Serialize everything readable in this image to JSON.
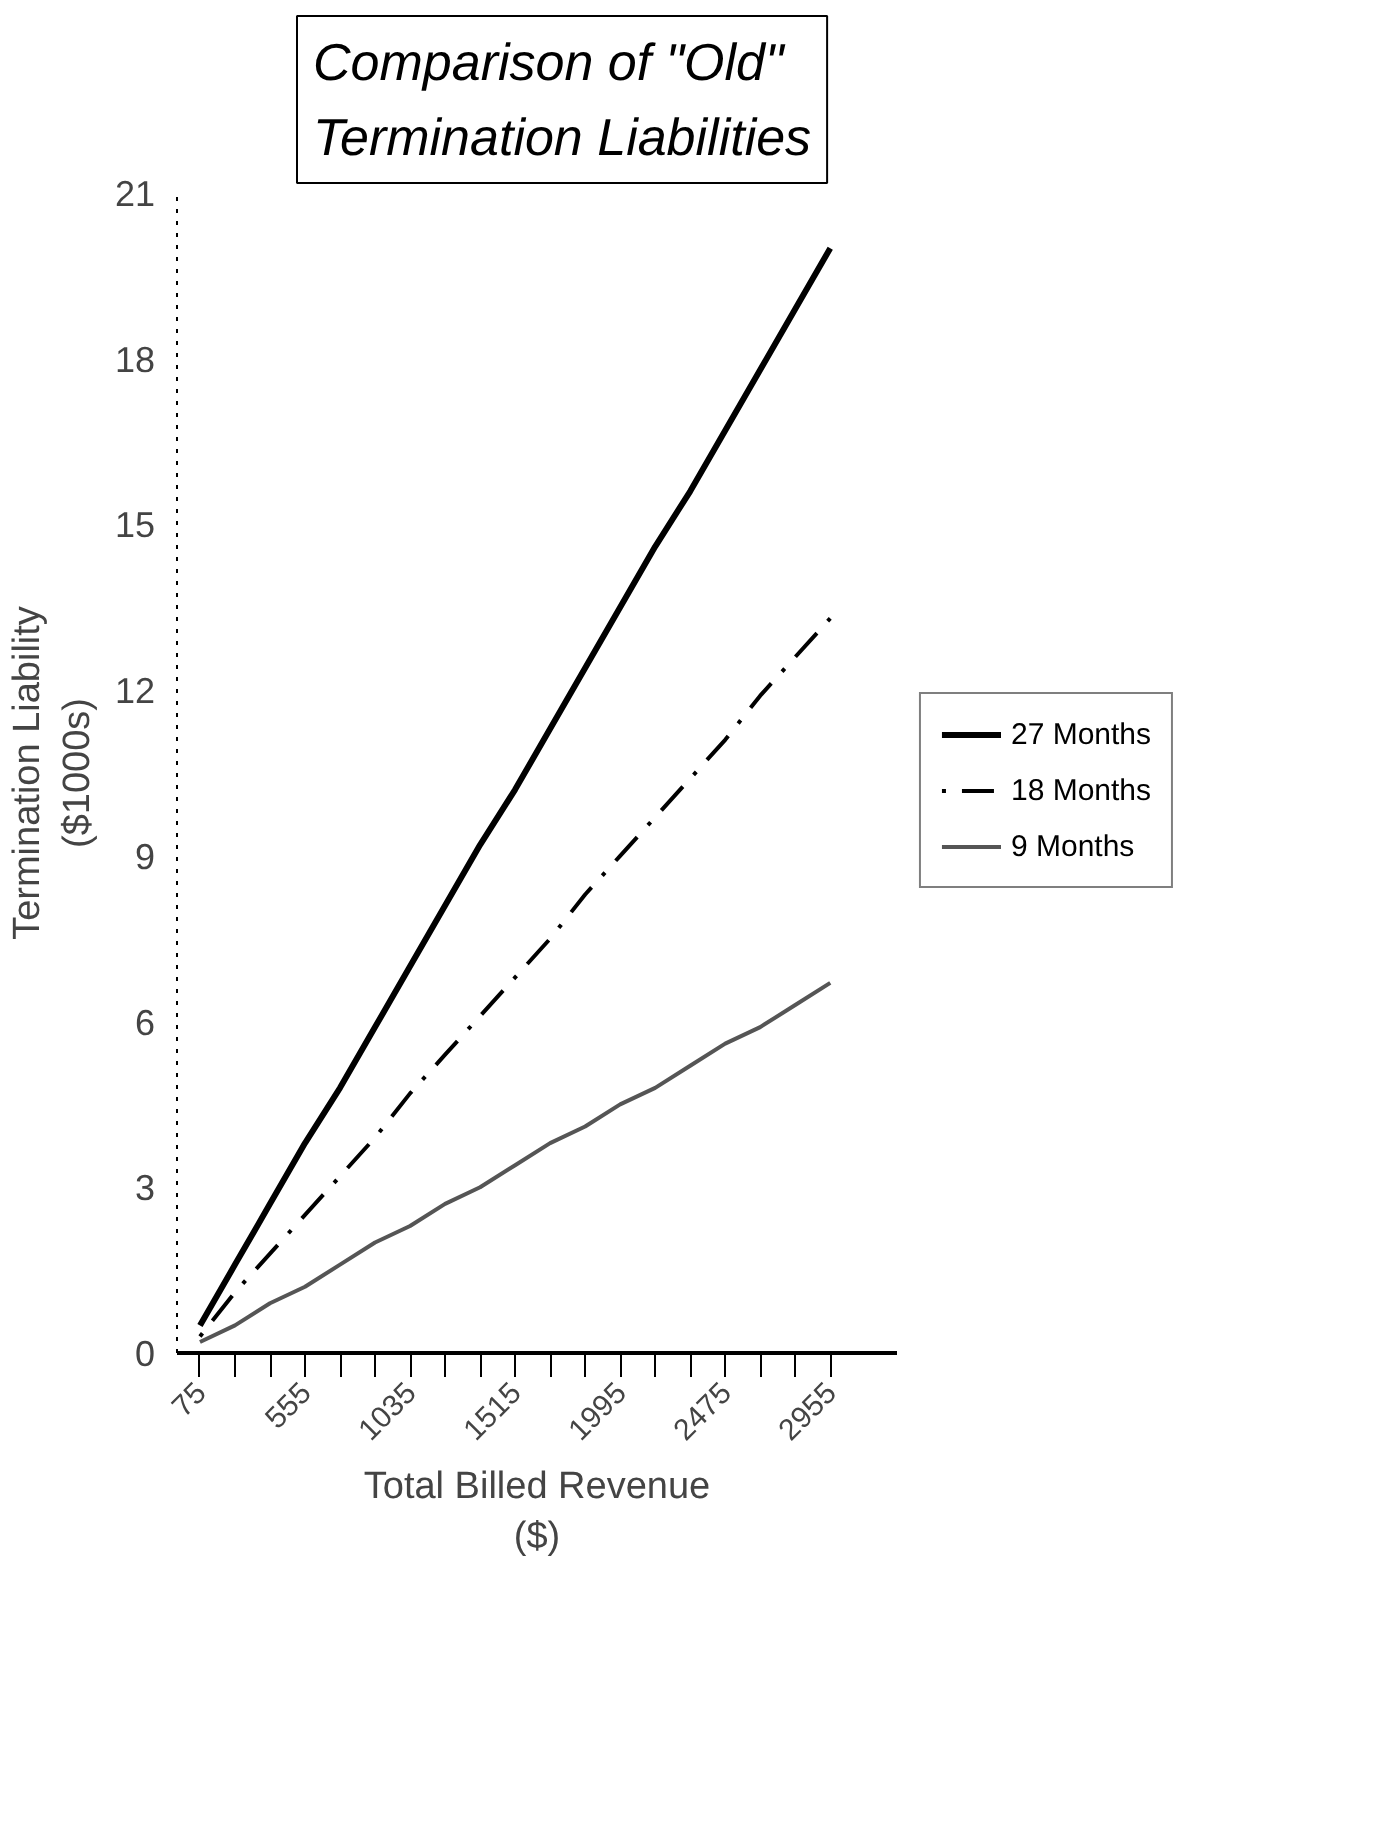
{
  "chart_data": {
    "type": "line",
    "title": "Comparison of \"Old\"\nTermination Liabilities",
    "xlabel": "Total Billed Revenue\n($)",
    "ylabel": "Termination Liability\n($1000s)",
    "x": [
      75,
      235,
      395,
      555,
      715,
      875,
      1035,
      1195,
      1355,
      1515,
      1675,
      1835,
      1995,
      2155,
      2315,
      2475,
      2635,
      2795,
      2955
    ],
    "xlim": [
      -30,
      3260
    ],
    "xticks": [
      75,
      {
        "value": 235,
        "label": null
      },
      {
        "value": 395,
        "label": null
      },
      555,
      {
        "value": 715,
        "label": null
      },
      {
        "value": 875,
        "label": null
      },
      1035,
      {
        "value": 1195,
        "label": null
      },
      {
        "value": 1355,
        "label": null
      },
      1515,
      {
        "value": 1675,
        "label": null
      },
      {
        "value": 1835,
        "label": null
      },
      1995,
      {
        "value": 2155,
        "label": null
      },
      {
        "value": 2315,
        "label": null
      },
      2475,
      {
        "value": 2635,
        "label": null
      },
      {
        "value": 2795,
        "label": null
      },
      2955
    ],
    "ylim": [
      0,
      21
    ],
    "yticks": [
      0,
      3,
      6,
      9,
      12,
      15,
      18,
      21
    ],
    "grid": false,
    "legend": "right",
    "marker": "none",
    "series": [
      {
        "name": "27 Months",
        "color": "#000000",
        "line_style": "solid",
        "values": [
          0.5,
          1.6,
          2.7,
          3.8,
          4.8,
          5.9,
          7.0,
          8.1,
          9.2,
          10.2,
          11.3,
          12.4,
          13.5,
          14.6,
          15.6,
          16.7,
          17.8,
          18.9,
          20.0
        ]
      },
      {
        "name": "18 Months",
        "color": "#000000",
        "line_style": "dashdot",
        "values": [
          0.3,
          1.1,
          1.8,
          2.5,
          3.2,
          3.9,
          4.7,
          5.4,
          6.1,
          6.8,
          7.5,
          8.3,
          9.0,
          9.7,
          10.4,
          11.1,
          11.9,
          12.6,
          13.3
        ]
      },
      {
        "name": "9 Months",
        "color": "#555555",
        "line_style": "solid",
        "values": [
          0.2,
          0.5,
          0.9,
          1.2,
          1.6,
          2.0,
          2.3,
          2.7,
          3.0,
          3.4,
          3.8,
          4.1,
          4.5,
          4.8,
          5.2,
          5.6,
          5.9,
          6.3,
          6.7
        ]
      }
    ]
  }
}
